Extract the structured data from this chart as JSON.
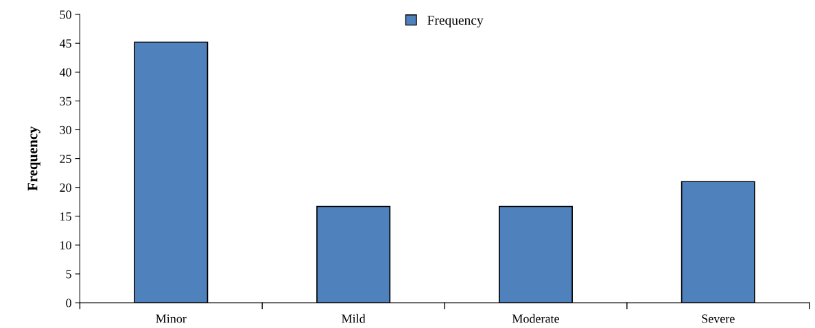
{
  "chart_data": {
    "type": "bar",
    "ylabel": "Frequency",
    "categories": [
      "Minor",
      "Mild",
      "Moderate",
      "Severe"
    ],
    "series": [
      {
        "name": "Frequency",
        "color": "#4f81bd",
        "values": [
          45.2,
          16.7,
          16.7,
          21.0
        ]
      }
    ],
    "ylim": [
      0,
      50
    ],
    "yticks": [
      0,
      5,
      10,
      15,
      20,
      25,
      30,
      35,
      40,
      45,
      50
    ],
    "grid": false,
    "legend": "top"
  }
}
